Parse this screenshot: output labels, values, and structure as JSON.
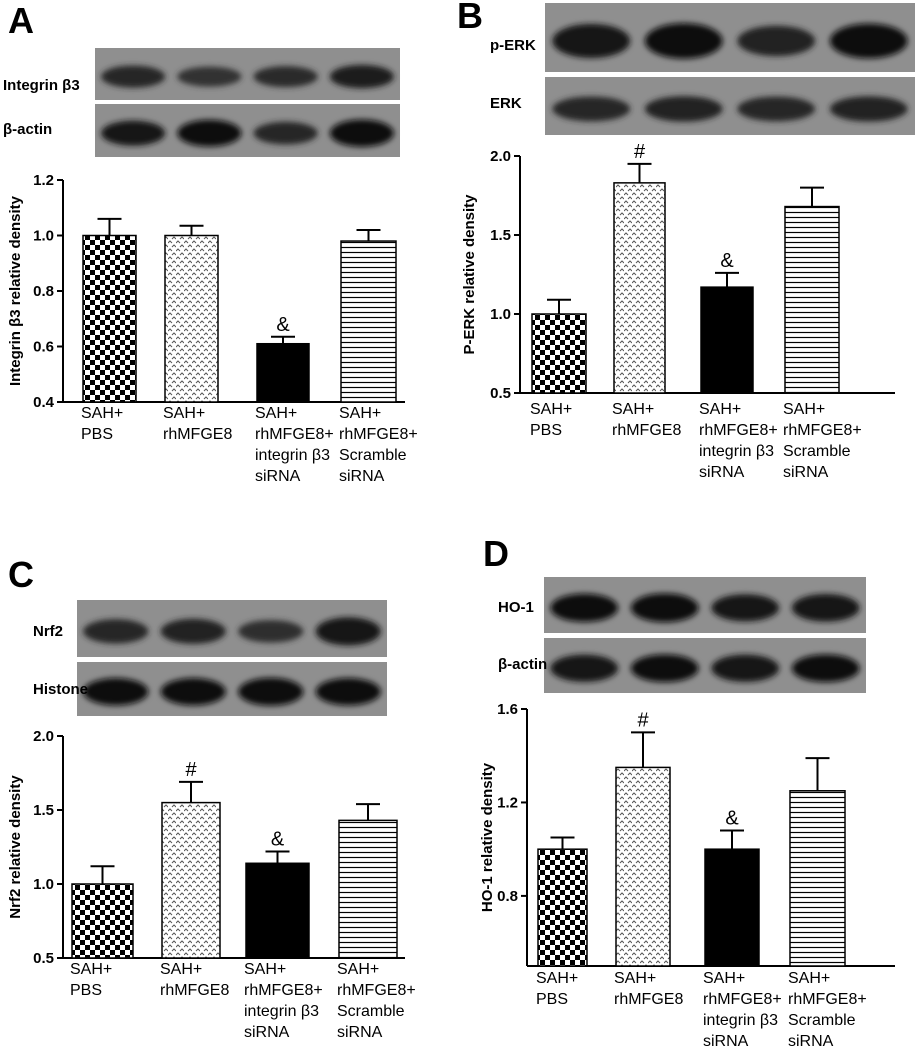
{
  "panels": [
    {
      "letter": "A",
      "blots": [
        "Integrin β3",
        "β-actin"
      ]
    },
    {
      "letter": "B",
      "blots": [
        "p-ERK",
        "ERK"
      ]
    },
    {
      "letter": "C",
      "blots": [
        "Nrf2",
        "Histone"
      ]
    },
    {
      "letter": "D",
      "blots": [
        "HO-1",
        "β-actin"
      ]
    }
  ],
  "chart_data": [
    {
      "type": "bar",
      "ylabel": "Integrin β3 relative density",
      "ylim": [
        0.4,
        1.2
      ],
      "yticks": [
        "0.4",
        "0.6",
        "0.8",
        "1.0",
        "1.2"
      ],
      "categories": [
        [
          "SAH+",
          "PBS"
        ],
        [
          "SAH+",
          "rhMFGE8"
        ],
        [
          "SAH+",
          "rhMFGE8+",
          "integrin β3",
          "siRNA"
        ],
        [
          "SAH+",
          "rhMFGE8+",
          "Scramble",
          "siRNA"
        ]
      ],
      "values": [
        1.0,
        1.0,
        0.61,
        0.98
      ],
      "errors": [
        0.06,
        0.035,
        0.025,
        0.04
      ],
      "significance": [
        "",
        "",
        "&",
        ""
      ],
      "patterns": [
        "checker",
        "dots",
        "solid",
        "hlines"
      ]
    },
    {
      "type": "bar",
      "ylabel": "P-ERK  relative density",
      "ylim": [
        0.5,
        2.0
      ],
      "yticks": [
        "0.5",
        "1.0",
        "1.5",
        "2.0"
      ],
      "categories": [
        [
          "SAH+",
          "PBS"
        ],
        [
          "SAH+",
          "rhMFGE8"
        ],
        [
          "SAH+",
          "rhMFGE8+",
          "integrin β3",
          "siRNA"
        ],
        [
          "SAH+",
          "rhMFGE8+",
          "Scramble",
          "siRNA"
        ]
      ],
      "values": [
        1.0,
        1.83,
        1.17,
        1.68
      ],
      "errors": [
        0.09,
        0.12,
        0.09,
        0.12
      ],
      "significance": [
        "",
        "#",
        "&",
        ""
      ],
      "patterns": [
        "checker",
        "dots",
        "solid",
        "hlines"
      ]
    },
    {
      "type": "bar",
      "ylabel": "Nrf2  relative density",
      "ylim": [
        0.5,
        2.0
      ],
      "yticks": [
        "0.5",
        "1.0",
        "1.5",
        "2.0"
      ],
      "categories": [
        [
          "SAH+",
          "PBS"
        ],
        [
          "SAH+",
          "rhMFGE8"
        ],
        [
          "SAH+",
          "rhMFGE8+",
          "integrin β3",
          "siRNA"
        ],
        [
          "SAH+",
          "rhMFGE8+",
          "Scramble",
          "siRNA"
        ]
      ],
      "values": [
        1.0,
        1.55,
        1.14,
        1.43
      ],
      "errors": [
        0.12,
        0.14,
        0.08,
        0.11
      ],
      "significance": [
        "",
        "#",
        "&",
        ""
      ],
      "patterns": [
        "checker",
        "dots",
        "solid",
        "hlines"
      ]
    },
    {
      "type": "bar",
      "ylabel": "HO-1  relative density",
      "ylim": [
        0.5,
        1.6
      ],
      "yticks": [
        "0.8",
        "1.2",
        "1.6"
      ],
      "categories": [
        [
          "SAH+",
          "PBS"
        ],
        [
          "SAH+",
          "rhMFGE8"
        ],
        [
          "SAH+",
          "rhMFGE8+",
          "integrin β3",
          "siRNA"
        ],
        [
          "SAH+",
          "rhMFGE8+",
          "Scramble",
          "siRNA"
        ]
      ],
      "values": [
        1.0,
        1.35,
        1.0,
        1.25
      ],
      "errors": [
        0.05,
        0.15,
        0.08,
        0.14
      ],
      "significance": [
        "",
        "#",
        "&",
        ""
      ],
      "patterns": [
        "checker",
        "dots",
        "solid",
        "hlines"
      ]
    }
  ]
}
